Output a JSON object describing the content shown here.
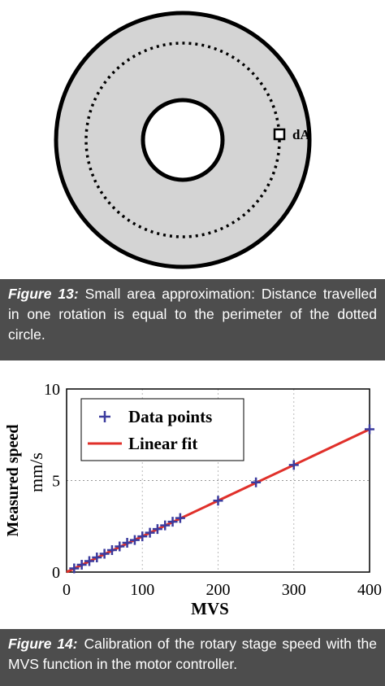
{
  "figure_13": {
    "annotation": "dA",
    "caption_label": "Figure 13:",
    "caption_text": "Small area approximation: Distance travelled in one rotation is equal to the perimeter of the dotted circle."
  },
  "chart_data": {
    "type": "scatter",
    "x_label": "MVS",
    "y_label": [
      "Measured speed",
      "mm/s"
    ],
    "xlim": [
      0,
      400
    ],
    "ylim": [
      0,
      10
    ],
    "xticks": [
      0,
      100,
      200,
      300,
      400
    ],
    "yticks": [
      0,
      5,
      10
    ],
    "grid": true,
    "legend": "upper left",
    "series": [
      {
        "name": "Data points",
        "color": "#3b3b9e",
        "marker": "+",
        "x": [
          10,
          20,
          30,
          40,
          50,
          60,
          70,
          80,
          90,
          100,
          110,
          120,
          130,
          140,
          150,
          200,
          250,
          300,
          400
        ],
        "values": [
          0.2,
          0.4,
          0.6,
          0.8,
          1.0,
          1.2,
          1.4,
          1.6,
          1.75,
          1.95,
          2.15,
          2.35,
          2.55,
          2.75,
          2.95,
          3.9,
          4.9,
          5.85,
          7.8
        ]
      },
      {
        "name": "Linear fit",
        "color": "#e0302a",
        "x": [
          0,
          400
        ],
        "values": [
          0,
          7.8
        ]
      }
    ]
  },
  "figure_14": {
    "caption_label": "Figure 14:",
    "caption_text": "Calibration of the rotary stage speed with the MVS function in the motor controller."
  }
}
